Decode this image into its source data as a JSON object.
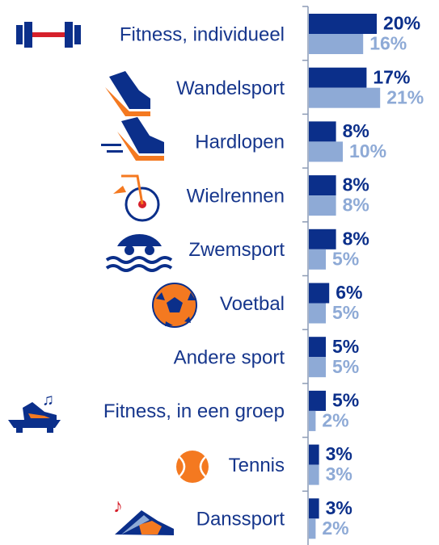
{
  "chart_data": {
    "type": "bar",
    "orientation": "horizontal",
    "categories": [
      "Fitness, individueel",
      "Wandelsport",
      "Hardlopen",
      "Wielrennen",
      "Zwemsport",
      "Voetbal",
      "Andere sport",
      "Fitness, in een groep",
      "Tennis",
      "Danssport"
    ],
    "series": [
      {
        "color": "#0b2f8a",
        "values": [
          20,
          17,
          8,
          8,
          8,
          6,
          5,
          5,
          3,
          3
        ],
        "value_labels": [
          "20%",
          "17%",
          "8%",
          "8%",
          "8%",
          "6%",
          "5%",
          "5%",
          "3%",
          "3%"
        ]
      },
      {
        "color": "#8eaad6",
        "values": [
          16,
          21,
          10,
          8,
          5,
          5,
          5,
          2,
          3,
          2
        ],
        "value_labels": [
          "16%",
          "21%",
          "10%",
          "8%",
          "5%",
          "5%",
          "5%",
          "2%",
          "3%",
          "2%"
        ]
      }
    ]
  }
}
